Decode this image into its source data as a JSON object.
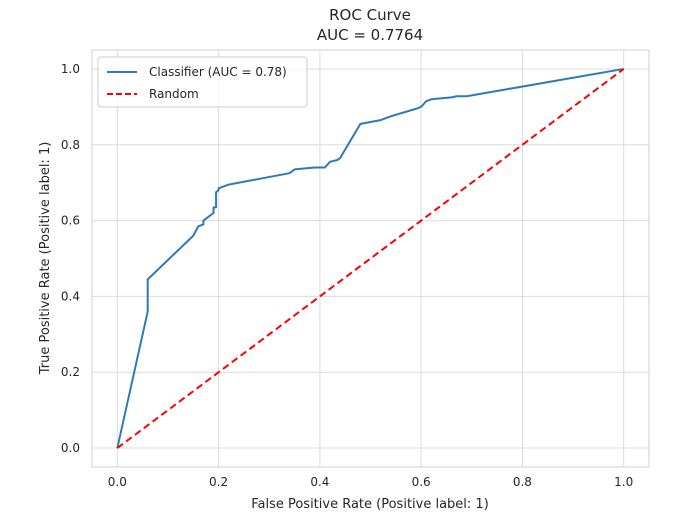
{
  "chart_data": {
    "type": "line",
    "title": "ROC Curve",
    "subtitle": "AUC = 0.7764",
    "xlabel": "False Positive Rate (Positive label: 1)",
    "ylabel": "True Positive Rate (Positive label: 1)",
    "xlim": [
      -0.05,
      1.05
    ],
    "ylim": [
      -0.05,
      1.05
    ],
    "xticks": [
      0.0,
      0.2,
      0.4,
      0.6,
      0.8,
      1.0
    ],
    "yticks": [
      0.0,
      0.2,
      0.4,
      0.6,
      0.8,
      1.0
    ],
    "xtick_labels": [
      "0.0",
      "0.2",
      "0.4",
      "0.6",
      "0.8",
      "1.0"
    ],
    "ytick_labels": [
      "0.0",
      "0.2",
      "0.4",
      "0.6",
      "0.8",
      "1.0"
    ],
    "grid": true,
    "legend_position": "top-left",
    "series": [
      {
        "name": "Classifier (AUC = 0.78)",
        "color": "#2f7ab5",
        "style": "solid",
        "points": [
          [
            0.0,
            0.0
          ],
          [
            0.06,
            0.36
          ],
          [
            0.06,
            0.445
          ],
          [
            0.15,
            0.56
          ],
          [
            0.16,
            0.585
          ],
          [
            0.17,
            0.59
          ],
          [
            0.17,
            0.6
          ],
          [
            0.18,
            0.61
          ],
          [
            0.19,
            0.62
          ],
          [
            0.19,
            0.635
          ],
          [
            0.195,
            0.635
          ],
          [
            0.195,
            0.675
          ],
          [
            0.2,
            0.68
          ],
          [
            0.2,
            0.685
          ],
          [
            0.22,
            0.695
          ],
          [
            0.34,
            0.725
          ],
          [
            0.35,
            0.735
          ],
          [
            0.39,
            0.74
          ],
          [
            0.4,
            0.74
          ],
          [
            0.41,
            0.74
          ],
          [
            0.42,
            0.755
          ],
          [
            0.435,
            0.76
          ],
          [
            0.44,
            0.765
          ],
          [
            0.48,
            0.855
          ],
          [
            0.52,
            0.865
          ],
          [
            0.54,
            0.875
          ],
          [
            0.59,
            0.895
          ],
          [
            0.6,
            0.9
          ],
          [
            0.61,
            0.915
          ],
          [
            0.62,
            0.92
          ],
          [
            0.66,
            0.925
          ],
          [
            0.67,
            0.928
          ],
          [
            0.69,
            0.928
          ],
          [
            1.0,
            1.0
          ]
        ]
      },
      {
        "name": "Random",
        "color": "#ff0000",
        "style": "dashed",
        "points": [
          [
            0.0,
            0.0
          ],
          [
            1.0,
            1.0
          ]
        ]
      }
    ]
  }
}
